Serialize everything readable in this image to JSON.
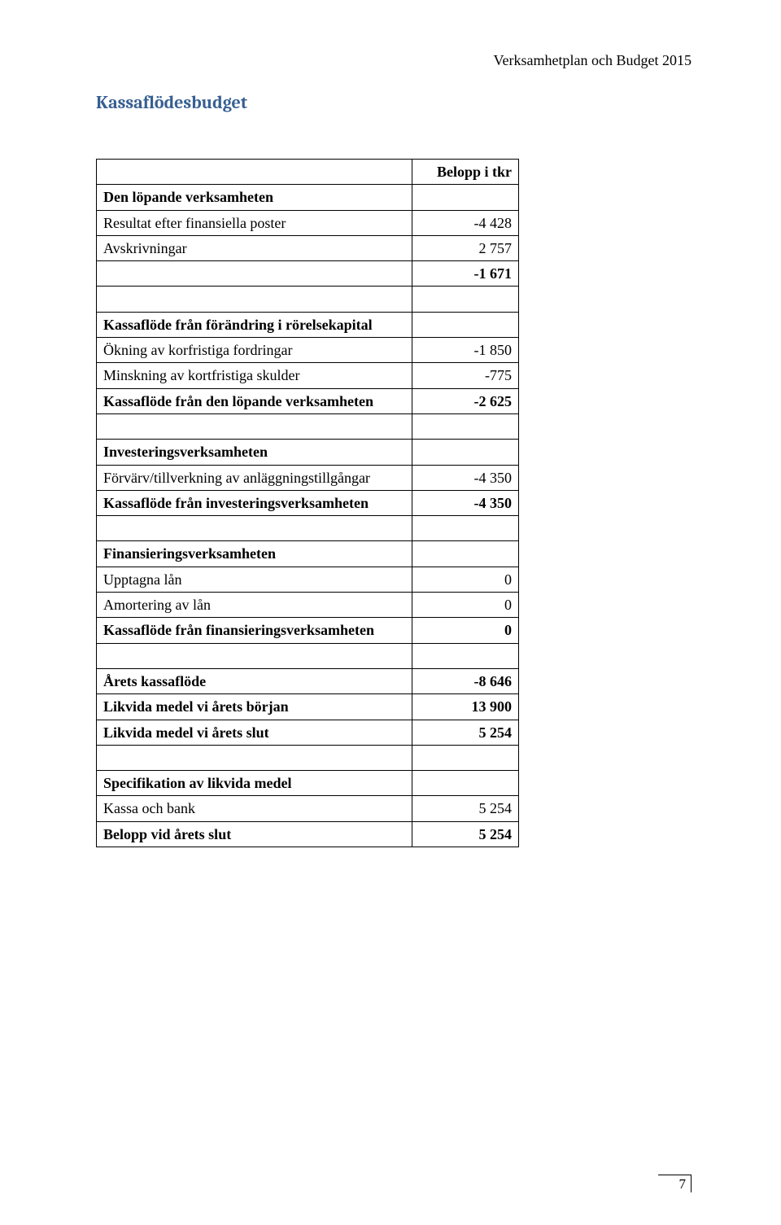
{
  "header": {
    "right": "Verksamhetplan och Budget 2015"
  },
  "title": "Kassaflödesbudget",
  "table": {
    "col_header": "Belopp i tkr",
    "rows": [
      {
        "label": "Den löpande verksamheten",
        "value": "",
        "bold": true
      },
      {
        "label": "Resultat efter finansiella poster",
        "value": "-4 428"
      },
      {
        "label": "Avskrivningar",
        "value": "2 757"
      },
      {
        "label": "",
        "value": "-1 671",
        "bold_value": true
      },
      {
        "label": "",
        "value": ""
      },
      {
        "label": "Kassaflöde från förändring i rörelsekapital",
        "value": "",
        "bold": true
      },
      {
        "label": "Ökning av korfristiga fordringar",
        "value": "-1 850"
      },
      {
        "label": "Minskning av kortfristiga skulder",
        "value": "-775"
      },
      {
        "label": "Kassaflöde från den löpande verksamheten",
        "value": "-2 625",
        "bold": true
      },
      {
        "label": "",
        "value": ""
      },
      {
        "label": "Investeringsverksamheten",
        "value": "",
        "bold": true
      },
      {
        "label": "Förvärv/tillverkning av anläggningstillgångar",
        "value": "-4 350"
      },
      {
        "label": "Kassaflöde från investeringsverksamheten",
        "value": "-4 350",
        "bold": true
      },
      {
        "label": "",
        "value": ""
      },
      {
        "label": "Finansieringsverksamheten",
        "value": "",
        "bold": true
      },
      {
        "label": "Upptagna lån",
        "value": "0"
      },
      {
        "label": "Amortering av lån",
        "value": "0"
      },
      {
        "label": "Kassaflöde från finansieringsverksamheten",
        "value": "0",
        "bold": true
      },
      {
        "label": "",
        "value": ""
      },
      {
        "label": "Årets kassaflöde",
        "value": "-8 646",
        "bold": true
      },
      {
        "label": "Likvida medel vi årets början",
        "value": "13 900",
        "bold": true
      },
      {
        "label": "Likvida medel vi årets slut",
        "value": "5 254",
        "bold": true
      },
      {
        "label": "",
        "value": ""
      },
      {
        "label": "Specifikation av likvida medel",
        "value": "",
        "bold": true
      },
      {
        "label": "Kassa och bank",
        "value": "5 254"
      },
      {
        "label": "Belopp vid årets slut",
        "value": "5 254",
        "bold": true
      }
    ]
  },
  "page_number": "7"
}
